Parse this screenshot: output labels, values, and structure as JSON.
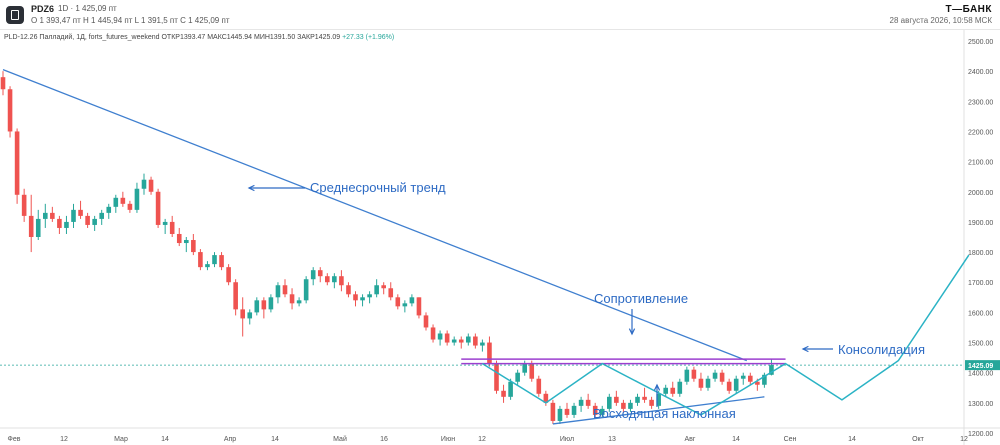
{
  "header": {
    "ticker": "PDZ6",
    "interval": "1D · 1 425,09 пт",
    "ohlc": "O 1 393,47 пт  H 1 445,94 пт  L 1 391,5 пт  C 1 425,09 пт",
    "brand": "T—БАНК",
    "timestamp": "28 августа 2026, 10:58 МСК"
  },
  "info": {
    "line": "PLD-12.26 Палладий, 1Д, forts_futures_weekend  ОТКР1393.47  МАКС1445.94  МИН1391.50  ЗАКР1425.09",
    "change": "+27.33 (+1.96%)"
  },
  "chart_data": {
    "type": "candlestick",
    "ylim": [
      1160,
      2530
    ],
    "y_ticks": [
      "2500.00",
      "2400.00",
      "2300.00",
      "2200.00",
      "2100.00",
      "2000.00",
      "1900.00",
      "1800.00",
      "1700.00",
      "1600.00",
      "1500.00",
      "1400.00",
      "1300.00",
      "1200.00"
    ],
    "x_ticks": [
      "Фев",
      "12",
      "Мар",
      "14",
      "Апр",
      "14",
      "Май",
      "16",
      "Июн",
      "12",
      "Июл",
      "13",
      "Авг",
      "14",
      "Сен",
      "14",
      "Окт",
      "12"
    ],
    "last_price": "1425.09",
    "colors": {
      "up": "#26a69a",
      "down": "#ef5350",
      "trend": "#3f7fcf",
      "pattern": "#2bb3c5",
      "resistance": "#9b3fcf",
      "annotation": "#2e6bc4"
    },
    "candles": [
      [
        2380,
        2400,
        2320,
        2340
      ],
      [
        2340,
        2350,
        2180,
        2200
      ],
      [
        2200,
        2210,
        1960,
        1990
      ],
      [
        1990,
        2010,
        1900,
        1920
      ],
      [
        1920,
        1990,
        1800,
        1850
      ],
      [
        1850,
        1940,
        1840,
        1910
      ],
      [
        1910,
        1960,
        1880,
        1930
      ],
      [
        1930,
        1950,
        1900,
        1910
      ],
      [
        1910,
        1920,
        1860,
        1880
      ],
      [
        1880,
        1920,
        1860,
        1900
      ],
      [
        1900,
        1960,
        1880,
        1940
      ],
      [
        1940,
        1970,
        1910,
        1920
      ],
      [
        1920,
        1930,
        1880,
        1890
      ],
      [
        1890,
        1920,
        1870,
        1910
      ],
      [
        1910,
        1940,
        1890,
        1930
      ],
      [
        1930,
        1960,
        1910,
        1950
      ],
      [
        1950,
        1990,
        1930,
        1980
      ],
      [
        1980,
        2000,
        1950,
        1960
      ],
      [
        1960,
        1970,
        1930,
        1940
      ],
      [
        1940,
        2030,
        1930,
        2010
      ],
      [
        2010,
        2060,
        1990,
        2040
      ],
      [
        2040,
        2050,
        1990,
        2000
      ],
      [
        2000,
        2010,
        1880,
        1890
      ],
      [
        1890,
        1910,
        1860,
        1900
      ],
      [
        1900,
        1920,
        1850,
        1860
      ],
      [
        1860,
        1880,
        1820,
        1830
      ],
      [
        1830,
        1850,
        1800,
        1840
      ],
      [
        1840,
        1860,
        1790,
        1800
      ],
      [
        1800,
        1810,
        1740,
        1750
      ],
      [
        1750,
        1770,
        1740,
        1760
      ],
      [
        1760,
        1800,
        1750,
        1790
      ],
      [
        1790,
        1800,
        1740,
        1750
      ],
      [
        1750,
        1760,
        1690,
        1700
      ],
      [
        1700,
        1710,
        1590,
        1610
      ],
      [
        1610,
        1650,
        1520,
        1580
      ],
      [
        1580,
        1610,
        1560,
        1600
      ],
      [
        1600,
        1650,
        1590,
        1640
      ],
      [
        1640,
        1650,
        1580,
        1610
      ],
      [
        1610,
        1660,
        1600,
        1650
      ],
      [
        1650,
        1700,
        1630,
        1690
      ],
      [
        1690,
        1710,
        1650,
        1660
      ],
      [
        1660,
        1680,
        1610,
        1630
      ],
      [
        1630,
        1650,
        1620,
        1640
      ],
      [
        1640,
        1720,
        1630,
        1710
      ],
      [
        1710,
        1750,
        1690,
        1740
      ],
      [
        1740,
        1750,
        1700,
        1720
      ],
      [
        1720,
        1730,
        1690,
        1700
      ],
      [
        1700,
        1730,
        1680,
        1720
      ],
      [
        1720,
        1740,
        1670,
        1690
      ],
      [
        1690,
        1700,
        1650,
        1660
      ],
      [
        1660,
        1670,
        1620,
        1640
      ],
      [
        1640,
        1660,
        1620,
        1650
      ],
      [
        1650,
        1670,
        1630,
        1660
      ],
      [
        1660,
        1710,
        1650,
        1690
      ],
      [
        1690,
        1700,
        1660,
        1680
      ],
      [
        1680,
        1700,
        1640,
        1650
      ],
      [
        1650,
        1660,
        1610,
        1620
      ],
      [
        1620,
        1640,
        1600,
        1630
      ],
      [
        1630,
        1660,
        1620,
        1650
      ],
      [
        1650,
        1650,
        1580,
        1590
      ],
      [
        1590,
        1600,
        1540,
        1550
      ],
      [
        1550,
        1560,
        1500,
        1510
      ],
      [
        1510,
        1540,
        1490,
        1530
      ],
      [
        1530,
        1540,
        1490,
        1500
      ],
      [
        1500,
        1520,
        1490,
        1510
      ],
      [
        1510,
        1520,
        1480,
        1500
      ],
      [
        1500,
        1530,
        1490,
        1520
      ],
      [
        1520,
        1530,
        1480,
        1490
      ],
      [
        1490,
        1510,
        1470,
        1500
      ],
      [
        1500,
        1520,
        1420,
        1430
      ],
      [
        1430,
        1440,
        1330,
        1340
      ],
      [
        1340,
        1360,
        1300,
        1320
      ],
      [
        1320,
        1380,
        1310,
        1370
      ],
      [
        1370,
        1410,
        1360,
        1400
      ],
      [
        1400,
        1440,
        1390,
        1430
      ],
      [
        1430,
        1440,
        1370,
        1380
      ],
      [
        1380,
        1390,
        1320,
        1330
      ],
      [
        1330,
        1340,
        1290,
        1300
      ],
      [
        1300,
        1310,
        1230,
        1240
      ],
      [
        1240,
        1290,
        1230,
        1280
      ],
      [
        1280,
        1300,
        1250,
        1260
      ],
      [
        1260,
        1300,
        1250,
        1290
      ],
      [
        1290,
        1320,
        1270,
        1310
      ],
      [
        1310,
        1330,
        1280,
        1290
      ],
      [
        1290,
        1300,
        1250,
        1260
      ],
      [
        1260,
        1290,
        1250,
        1280
      ],
      [
        1280,
        1330,
        1270,
        1320
      ],
      [
        1320,
        1340,
        1290,
        1300
      ],
      [
        1300,
        1310,
        1270,
        1280
      ],
      [
        1280,
        1310,
        1270,
        1300
      ],
      [
        1300,
        1330,
        1290,
        1320
      ],
      [
        1320,
        1350,
        1300,
        1310
      ],
      [
        1310,
        1320,
        1280,
        1290
      ],
      [
        1290,
        1340,
        1280,
        1330
      ],
      [
        1330,
        1360,
        1320,
        1350
      ],
      [
        1350,
        1370,
        1320,
        1330
      ],
      [
        1330,
        1380,
        1320,
        1370
      ],
      [
        1370,
        1420,
        1360,
        1410
      ],
      [
        1410,
        1420,
        1370,
        1380
      ],
      [
        1380,
        1400,
        1340,
        1350
      ],
      [
        1350,
        1390,
        1340,
        1380
      ],
      [
        1380,
        1410,
        1370,
        1400
      ],
      [
        1400,
        1410,
        1360,
        1370
      ],
      [
        1370,
        1380,
        1330,
        1340
      ],
      [
        1340,
        1390,
        1330,
        1380
      ],
      [
        1380,
        1400,
        1360,
        1390
      ],
      [
        1390,
        1400,
        1360,
        1370
      ],
      [
        1370,
        1380,
        1340,
        1360
      ],
      [
        1360,
        1400,
        1350,
        1393
      ],
      [
        1393,
        1446,
        1391,
        1425
      ]
    ],
    "trend_line": [
      [
        2405,
        0
      ],
      [
        1440,
        105.5
      ]
    ],
    "resistance_levels": [
      1445,
      1430
    ],
    "support_line": [
      [
        1230,
        78
      ],
      [
        1320,
        108
      ]
    ],
    "pattern_path": [
      [
        1430,
        68
      ],
      [
        1300,
        77
      ],
      [
        1430,
        85
      ],
      [
        1260,
        99
      ],
      [
        1430,
        111
      ],
      [
        1310,
        119
      ],
      [
        1440,
        127
      ],
      [
        1790,
        137
      ]
    ],
    "annotations": {
      "trend": "Среднесрочный тренд",
      "resistance": "Сопротивление",
      "consolidation": "Консолидация",
      "support": "Восходящая наклонная"
    }
  }
}
